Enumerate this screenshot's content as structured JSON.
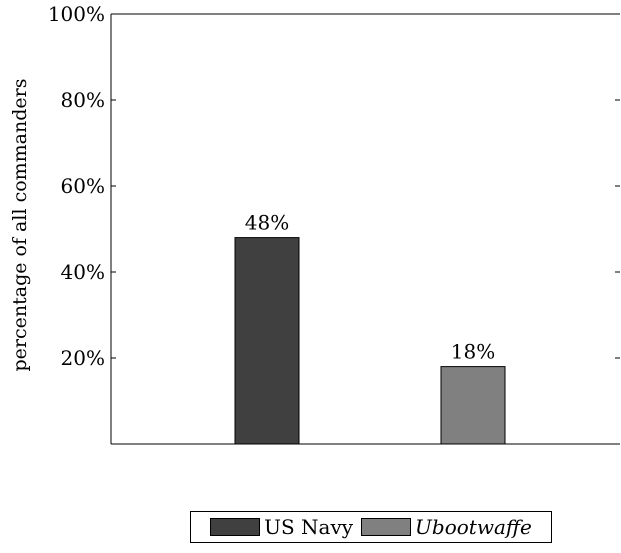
{
  "chart_data": {
    "type": "bar",
    "categories": [
      "US Navy",
      "Ubootwaffe"
    ],
    "series": [
      {
        "name": "US Navy",
        "values": [
          48,
          null
        ],
        "color": "#404040"
      },
      {
        "name": "Ubootwaffe",
        "values": [
          null,
          18
        ],
        "color": "#808080"
      }
    ],
    "values": [
      48,
      18
    ],
    "data_labels": [
      "48%",
      "18%"
    ],
    "ylabel": "percentage of all commanders",
    "ylim": [
      0,
      100
    ],
    "yticks": [
      20,
      40,
      60,
      80,
      100
    ],
    "ytick_labels": [
      "20%",
      "40%",
      "60%",
      "80%",
      "100%"
    ],
    "grid": false,
    "legend_position": "bottom"
  },
  "legend": {
    "items": [
      {
        "label": "US Navy",
        "color": "#404040",
        "italic": false
      },
      {
        "label": "Ubootwaffe",
        "color": "#808080",
        "italic": true
      }
    ]
  }
}
